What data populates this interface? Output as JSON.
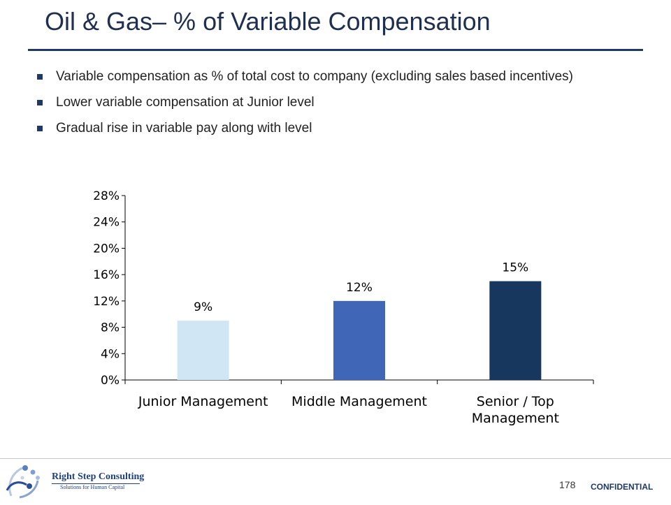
{
  "slide": {
    "title": "Oil & Gas– % of Variable Compensation",
    "bullets": [
      "Variable compensation as % of total cost to company (excluding sales based incentives)",
      "Lower variable compensation at Junior level",
      "Gradual rise in variable pay along with level"
    ]
  },
  "chart_data": {
    "type": "bar",
    "categories": [
      [
        "Junior Management"
      ],
      [
        "Middle Management"
      ],
      [
        "Senior / Top",
        "Management"
      ]
    ],
    "values": [
      9,
      12,
      15
    ],
    "value_labels": [
      "9%",
      "12%",
      "15%"
    ],
    "colors": [
      "#d0e6f5",
      "#4066b8",
      "#17375e"
    ],
    "ylim": [
      0,
      28
    ],
    "yticks": [
      0,
      4,
      8,
      12,
      16,
      20,
      24,
      28
    ],
    "ytick_labels": [
      "0%",
      "4%",
      "8%",
      "12%",
      "16%",
      "20%",
      "24%",
      "28%"
    ],
    "title": "",
    "xlabel": "",
    "ylabel": "",
    "grid": false,
    "legend": "none"
  },
  "footer": {
    "company": "Right Step Consulting",
    "tagline": "Solutions for Human Capital",
    "page_number": "178",
    "confidential": "CONFIDENTIAL"
  }
}
